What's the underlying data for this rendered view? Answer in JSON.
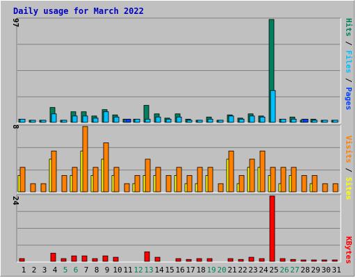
{
  "chart_data": {
    "type": "bar",
    "title": "Daily usage for March 2022",
    "categories": [
      "1",
      "2",
      "3",
      "4",
      "5",
      "6",
      "7",
      "8",
      "9",
      "10",
      "11",
      "12",
      "13",
      "14",
      "15",
      "16",
      "17",
      "18",
      "19",
      "20",
      "21",
      "22",
      "23",
      "24",
      "25",
      "26",
      "27",
      "28",
      "29",
      "30",
      "31"
    ],
    "weekend_days": [
      "5",
      "6",
      "12",
      "13",
      "19",
      "20",
      "26",
      "27"
    ],
    "panels": [
      {
        "id": "top",
        "max_label": "97",
        "ylim": [
          0,
          97
        ],
        "legend": [
          "Pages",
          "Files",
          "Hits"
        ],
        "series": [
          {
            "name": "Hits",
            "color": "#00805c",
            "values": [
              3,
              2,
              2,
              14,
              2,
              10,
              10,
              6,
              12,
              7,
              3,
              3,
              16,
              8,
              4,
              8,
              3,
              2,
              5,
              2,
              7,
              4,
              8,
              6,
              97,
              3,
              5,
              2,
              3,
              2,
              2
            ]
          },
          {
            "name": "Files",
            "color": "#00c0ff",
            "values": [
              3,
              2,
              2,
              8,
              2,
              6,
              6,
              4,
              10,
              5,
              3,
              3,
              3,
              5,
              3,
              5,
              2,
              2,
              3,
              2,
              6,
              3,
              6,
              5,
              30,
              3,
              3,
              3,
              2,
              2,
              2
            ]
          },
          {
            "name": "Pages",
            "color": "#0040ff",
            "values": [
              0,
              0,
              0,
              0,
              0,
              0,
              0,
              0,
              0,
              0,
              3,
              0,
              0,
              0,
              0,
              0,
              0,
              0,
              0,
              0,
              0,
              0,
              0,
              0,
              0,
              0,
              0,
              3,
              0,
              0,
              0
            ]
          }
        ]
      },
      {
        "id": "middle",
        "max_label": "8",
        "ylim": [
          0,
          8
        ],
        "legend": [
          "Sites",
          "Visits"
        ],
        "series": [
          {
            "name": "Sites",
            "color": "#ffff00",
            "values": [
              2,
              0,
              0,
              4,
              0,
              2,
              5,
              2,
              4,
              2,
              0,
              1,
              2,
              2,
              0,
              2,
              1,
              1,
              2,
              0,
              4,
              1,
              3,
              3,
              2,
              1,
              2,
              0,
              1,
              0,
              0
            ]
          },
          {
            "name": "Visits",
            "color": "#ff8000",
            "values": [
              3,
              1,
              1,
              5,
              2,
              3,
              8,
              3,
              6,
              3,
              1,
              2,
              4,
              3,
              2,
              3,
              2,
              3,
              3,
              1,
              5,
              2,
              4,
              5,
              3,
              3,
              3,
              2,
              2,
              1,
              1
            ]
          }
        ]
      },
      {
        "id": "bottom",
        "max_label": "24",
        "ylim": [
          0,
          24
        ],
        "legend": [
          "KBytes"
        ],
        "series": [
          {
            "name": "KBytes",
            "color": "#ff0000",
            "values": [
              1,
              0,
              0,
              3,
              1,
              2,
              2,
              1,
              2,
              1.5,
              0,
              0,
              3.5,
              1.5,
              0,
              1,
              0.7,
              1,
              1,
              0,
              1,
              0.7,
              1.5,
              1,
              24,
              1,
              0.7,
              0.5,
              0.5,
              0.5,
              0.5
            ]
          }
        ]
      }
    ]
  }
}
